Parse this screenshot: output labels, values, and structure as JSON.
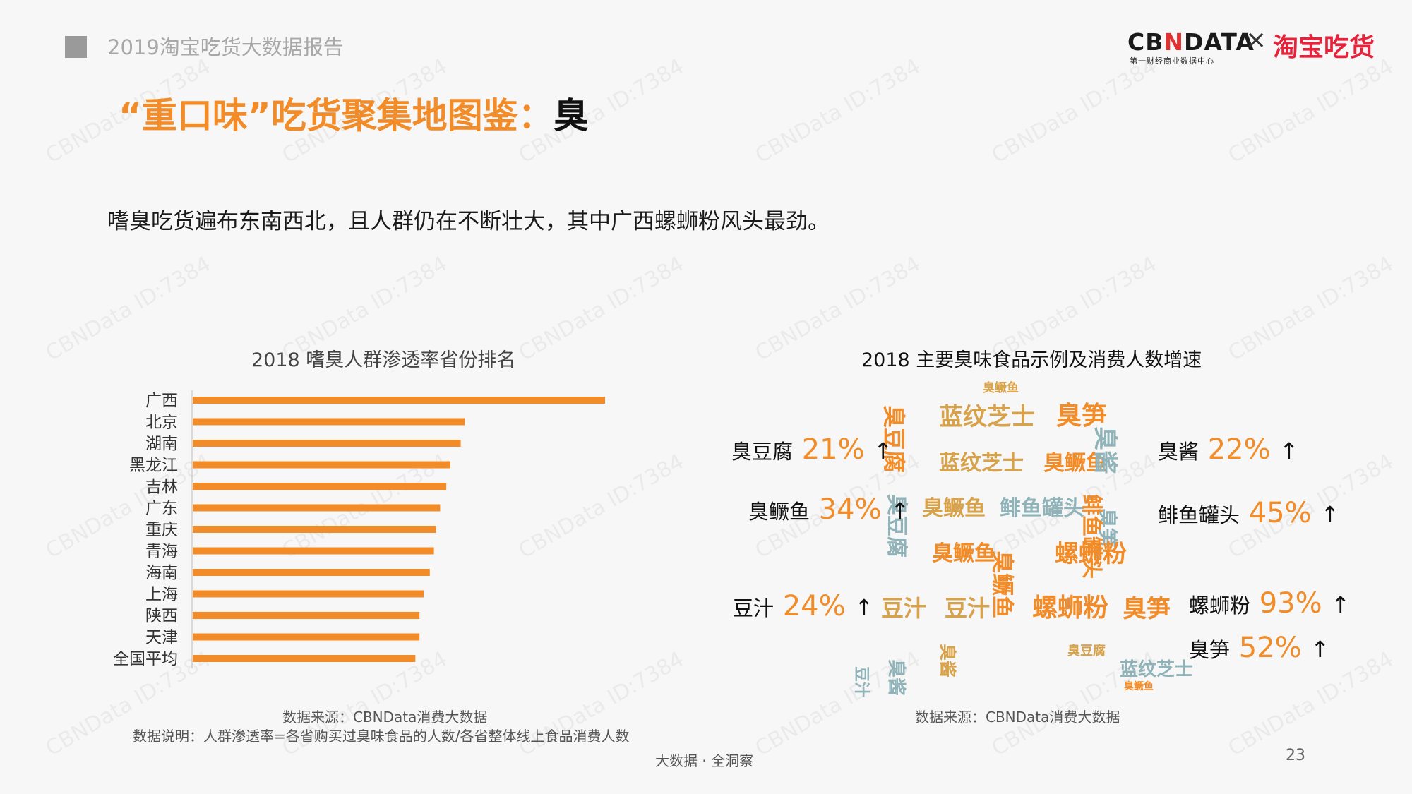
{
  "header": {
    "report_title": "2019淘宝吃货大数据报告",
    "page_title_main": "“重口味”吃货聚集地图鉴：",
    "page_title_highlight": "臭",
    "subtitle": "嗜臭吃货遍布东南西北，且人群仍在不断壮大，其中广西螺蛳粉风头最劲。"
  },
  "logo": {
    "cbn_prefix": "CB",
    "cbn_n": "N",
    "cbn_suffix": "DATA",
    "cbn_subtitle": "第一财经商业数据中心",
    "times": "×",
    "taobao": "淘宝吃货"
  },
  "colors": {
    "accent": "#f28c28",
    "bar": "#f28c28",
    "taobao_red": "#e5233b"
  },
  "chart_data": [
    {
      "type": "bar",
      "orientation": "horizontal",
      "title": "2018 嗜臭人群渗透率省份排名",
      "categories": [
        "广西",
        "北京",
        "湖南",
        "黑龙江",
        "吉林",
        "广东",
        "重庆",
        "青海",
        "海南",
        "上海",
        "陕西",
        "天津",
        "全国平均"
      ],
      "values": [
        100,
        66,
        65,
        62.5,
        61.5,
        60,
        59,
        58.5,
        57.5,
        56,
        55,
        55,
        54
      ],
      "xlim": [
        0,
        100
      ],
      "grid": false,
      "legend": "none"
    },
    {
      "type": "table",
      "title": "2018 主要臭味食品示例及消费人数增速",
      "items": [
        {
          "name": "臭豆腐",
          "growth": "21%",
          "arrow": "↑"
        },
        {
          "name": "臭酱",
          "growth": "22%",
          "arrow": "↑"
        },
        {
          "name": "臭鳜鱼",
          "growth": "34%",
          "arrow": "↑"
        },
        {
          "name": "鲱鱼罐头",
          "growth": "45%",
          "arrow": "↑"
        },
        {
          "name": "豆汁",
          "growth": "24%",
          "arrow": "↑"
        },
        {
          "name": "螺蛳粉",
          "growth": "93%",
          "arrow": "↑"
        },
        {
          "name": "臭笋",
          "growth": "52%",
          "arrow": "↑"
        }
      ]
    }
  ],
  "cloud_words": [
    {
      "text": "臭鳜鱼",
      "color": "#d7a24a"
    },
    {
      "text": "蓝纹芝士",
      "color": "#d7a24a"
    },
    {
      "text": "臭笋",
      "color": "#f28c28"
    },
    {
      "text": "臭豆腐",
      "color": "#f28c28"
    },
    {
      "text": "蓝纹芝士",
      "color": "#d7a24a"
    },
    {
      "text": "臭鳜鱼",
      "color": "#f28c28"
    },
    {
      "text": "臭酱",
      "color": "#8fb3b8"
    },
    {
      "text": "臭笋",
      "color": "#8fb3b8"
    },
    {
      "text": "臭鳜鱼",
      "color": "#d7a24a"
    },
    {
      "text": "鲱鱼罐头",
      "color": "#8fb3b8"
    },
    {
      "text": "鲱鱼罐头",
      "color": "#f28c28"
    },
    {
      "text": "臭豆腐",
      "color": "#8fb3b8"
    },
    {
      "text": "螺蛳粉",
      "color": "#f28c28"
    },
    {
      "text": "臭鳜鱼",
      "color": "#f28c28"
    },
    {
      "text": "豆汁",
      "color": "#d7a24a"
    },
    {
      "text": "豆汁",
      "color": "#d7a24a"
    },
    {
      "text": "螺蛳粉",
      "color": "#f28c28"
    },
    {
      "text": "臭笋",
      "color": "#f28c28"
    },
    {
      "text": "臭鳜鱼",
      "color": "#f28c28"
    },
    {
      "text": "臭酱",
      "color": "#8fb3b8"
    },
    {
      "text": "臭豆腐",
      "color": "#d7a24a"
    },
    {
      "text": "蓝纹芝士",
      "color": "#8fb3b8"
    },
    {
      "text": "豆汁",
      "color": "#8fb3b8"
    },
    {
      "text": "臭酱",
      "color": "#d7a24a"
    },
    {
      "text": "臭鳜鱼",
      "color": "#f28c28"
    }
  ],
  "footer": {
    "bar_source": "数据来源：CBNData消费大数据",
    "bar_note": "数据说明：人群渗透率=各省购买过臭味食品的人数/各省整体线上食品消费人数",
    "cloud_source": "数据来源：CBNData消费大数据",
    "tagline": "大数据 · 全洞察",
    "page_number": "23"
  },
  "watermark": "CBNData ID:7384"
}
